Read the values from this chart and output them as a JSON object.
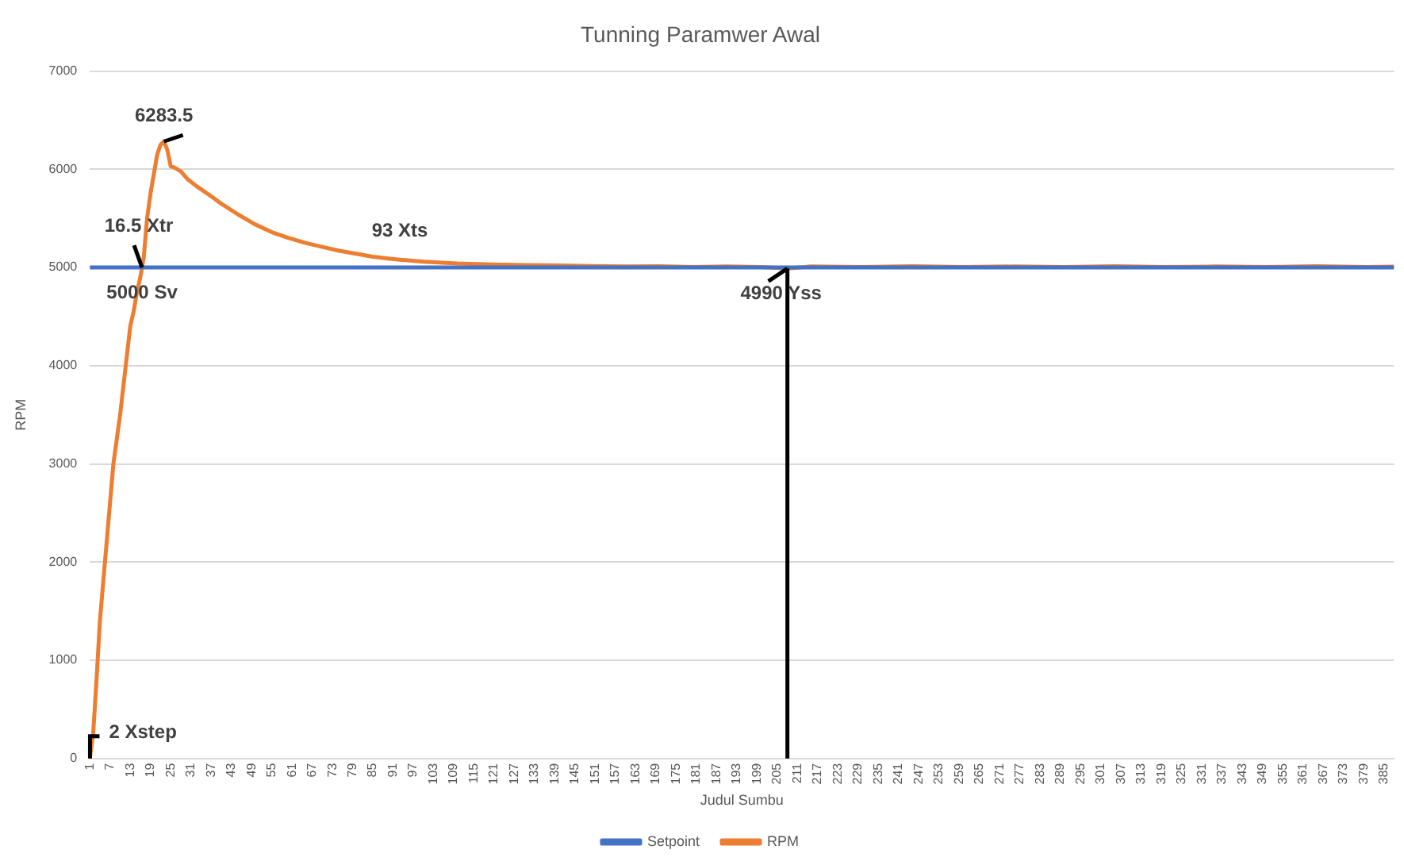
{
  "chart_data": {
    "type": "line",
    "title": "Tunning Paramwer Awal",
    "xlabel": "Judul Sumbu",
    "ylabel": "RPM",
    "xlim": [
      1,
      388
    ],
    "xticks": [
      1,
      7,
      13,
      19,
      25,
      31,
      37,
      43,
      49,
      55,
      61,
      67,
      73,
      79,
      85,
      91,
      97,
      103,
      109,
      115,
      121,
      127,
      133,
      139,
      145,
      151,
      157,
      163,
      169,
      175,
      181,
      187,
      193,
      199,
      205,
      211,
      217,
      223,
      229,
      235,
      241,
      247,
      253,
      259,
      265,
      271,
      277,
      283,
      289,
      295,
      301,
      307,
      313,
      319,
      325,
      331,
      337,
      343,
      349,
      355,
      361,
      367,
      373,
      379,
      385
    ],
    "ylim": [
      0,
      7000
    ],
    "yticks": [
      0,
      1000,
      2000,
      3000,
      4000,
      5000,
      6000,
      7000
    ],
    "series": [
      {
        "name": "Setpoint",
        "color": "#4472c4",
        "x": [
          1,
          388
        ],
        "values": [
          5000,
          5000
        ]
      },
      {
        "name": "RPM",
        "color": "#ed7d31",
        "x": [
          1,
          2,
          3,
          4,
          5,
          6,
          7,
          8,
          9,
          10,
          11,
          12,
          13,
          14,
          15,
          16,
          17,
          18,
          19,
          20,
          21,
          22,
          23,
          24,
          25,
          26,
          28,
          30,
          33,
          36,
          40,
          45,
          50,
          55,
          60,
          65,
          70,
          75,
          80,
          85,
          90,
          93,
          100,
          110,
          120,
          130,
          140,
          150,
          160,
          170,
          180,
          190,
          200,
          208,
          215,
          230,
          245,
          260,
          275,
          290,
          305,
          320,
          335,
          350,
          365,
          380,
          388
        ],
        "values": [
          0,
          250,
          800,
          1400,
          1800,
          2200,
          2600,
          3000,
          3250,
          3500,
          3800,
          4100,
          4400,
          4550,
          4750,
          4900,
          5100,
          5500,
          5750,
          5950,
          6150,
          6250,
          6283.5,
          6200,
          6030,
          6020,
          5980,
          5900,
          5820,
          5750,
          5650,
          5540,
          5440,
          5360,
          5300,
          5250,
          5210,
          5170,
          5140,
          5110,
          5090,
          5080,
          5060,
          5040,
          5030,
          5025,
          5020,
          5015,
          5010,
          5012,
          5005,
          5010,
          5005,
          4990,
          5010,
          5005,
          5012,
          5005,
          5010,
          5005,
          5012,
          5005,
          5010,
          5005,
          5012,
          5005,
          5008
        ]
      }
    ],
    "annotations": [
      {
        "text": "6283.5",
        "x": 23,
        "y": 6283.5
      },
      {
        "text": "16.5 Xtr",
        "x": 16.5,
        "y": 5000
      },
      {
        "text": "5000 Sv",
        "x": 16.5,
        "y": 5000
      },
      {
        "text": "93 Xts",
        "x": 93,
        "y": 5080
      },
      {
        "text": "4990 Yss",
        "x": 208,
        "y": 4990
      },
      {
        "text": "2 Xstep",
        "x": 2,
        "y": 0
      }
    ],
    "grid": "y",
    "legend": "bottom",
    "marker": "none",
    "line_style": "solid"
  }
}
